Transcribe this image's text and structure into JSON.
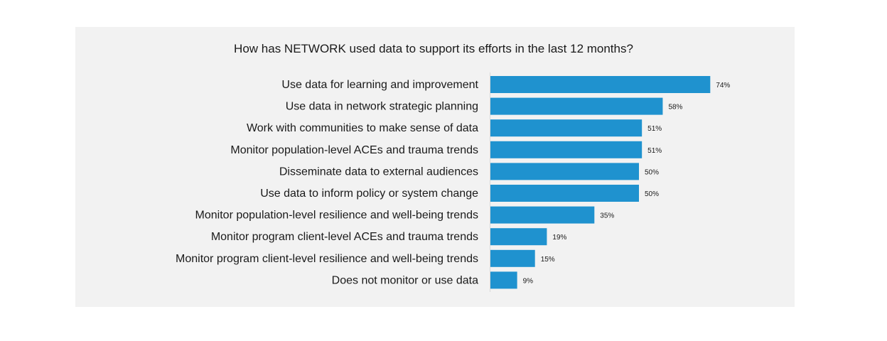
{
  "chart_data": {
    "type": "bar",
    "orientation": "horizontal",
    "title": "How has NETWORK used data to support its efforts in the last 12 months?",
    "categories": [
      "Use data for learning and improvement",
      "Use data in network strategic planning",
      "Work with communities to make sense of data",
      "Monitor population-level ACEs and trauma trends",
      "Disseminate data to external audiences",
      "Use data to inform policy or system change",
      "Monitor population-level resilience and well-being trends",
      "Monitor program client-level ACEs and trauma trends",
      "Monitor program client-level resilience and well-being trends",
      "Does not monitor or use data"
    ],
    "values": [
      74,
      58,
      51,
      51,
      50,
      50,
      35,
      19,
      15,
      9
    ],
    "value_labels": [
      "74%",
      "58%",
      "51%",
      "51%",
      "50%",
      "50%",
      "35%",
      "19%",
      "15%",
      "9%"
    ],
    "unit": "%",
    "xlim": [
      0,
      100
    ],
    "grid": false,
    "legend": "none",
    "colors": {
      "bar": "#1f92cf",
      "axis": "#d9d9d9",
      "panel": "#f2f2f2",
      "text": "#1a1a1a"
    }
  }
}
